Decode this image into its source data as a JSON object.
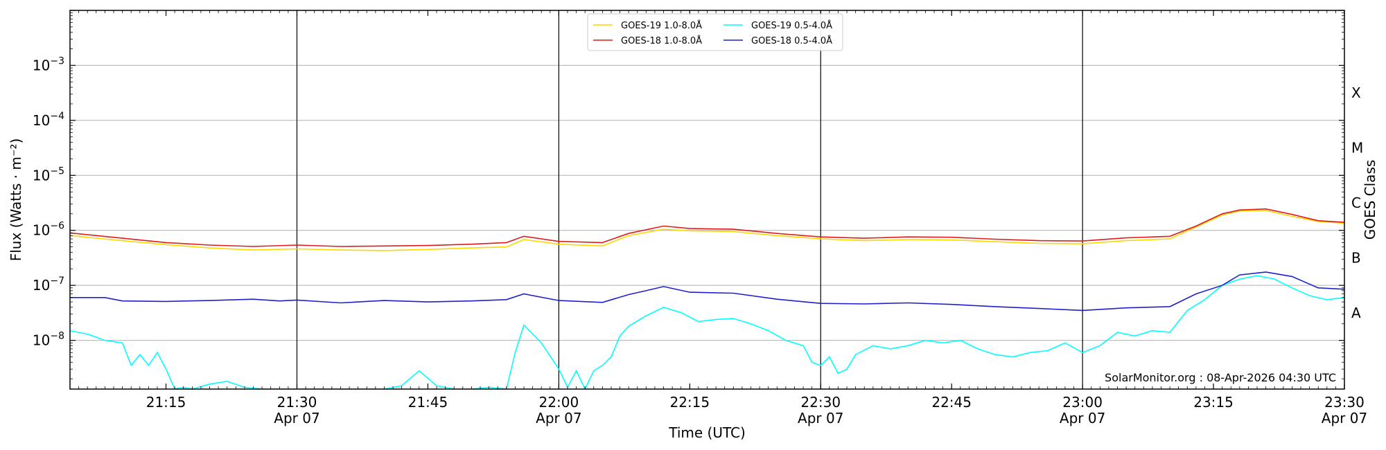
{
  "chart_data": {
    "type": "line",
    "xlabel": "Time (UTC)",
    "ylabel": "Flux (Watts · m⁻²)",
    "y2label": "GOES Class",
    "credit": "SolarMonitor.org : 08-Apr-2026 04:30 UTC",
    "yscale": "log",
    "ylim": [
      1.3e-09,
      0.01
    ],
    "xlim": [
      "2026-04-07T21:04",
      "2026-04-07T23:30"
    ],
    "grid": true,
    "legend_position": "top-center",
    "x_ticks": [
      {
        "time": "21:15",
        "date": ""
      },
      {
        "time": "21:30",
        "date": "Apr 07"
      },
      {
        "time": "21:45",
        "date": ""
      },
      {
        "time": "22:00",
        "date": "Apr 07"
      },
      {
        "time": "22:15",
        "date": ""
      },
      {
        "time": "22:30",
        "date": "Apr 07"
      },
      {
        "time": "22:45",
        "date": ""
      },
      {
        "time": "23:00",
        "date": "Apr 07"
      },
      {
        "time": "23:15",
        "date": ""
      },
      {
        "time": "23:30",
        "date": "Apr 07"
      }
    ],
    "y_ticks": [
      {
        "value": 1e-08,
        "label": "10",
        "exp": "−8"
      },
      {
        "value": 1e-07,
        "label": "10",
        "exp": "−7"
      },
      {
        "value": 1e-06,
        "label": "10",
        "exp": "−6"
      },
      {
        "value": 1e-05,
        "label": "10",
        "exp": "−5"
      },
      {
        "value": 0.0001,
        "label": "10",
        "exp": "−4"
      },
      {
        "value": 0.001,
        "label": "10",
        "exp": "−3"
      }
    ],
    "goes_classes": [
      {
        "label": "A",
        "value": 1e-08
      },
      {
        "label": "B",
        "value": 1e-07
      },
      {
        "label": "C",
        "value": 1e-06
      },
      {
        "label": "M",
        "value": 1e-05
      },
      {
        "label": "X",
        "value": 0.0001
      }
    ],
    "series": [
      {
        "name": "GOES-19 1.0-8.0Å",
        "color": "#ffd700",
        "x": [
          "21:04",
          "21:10",
          "21:15",
          "21:20",
          "21:25",
          "21:30",
          "21:35",
          "21:40",
          "21:45",
          "21:50",
          "21:54",
          "21:56",
          "22:00",
          "22:05",
          "22:08",
          "22:12",
          "22:15",
          "22:20",
          "22:25",
          "22:30",
          "22:35",
          "22:40",
          "22:45",
          "22:50",
          "22:55",
          "23:00",
          "23:05",
          "23:10",
          "23:13",
          "23:16",
          "23:18",
          "23:21",
          "23:24",
          "23:27",
          "23:30"
        ],
        "y": [
          8e-07,
          6.5e-07,
          5.5e-07,
          4.8e-07,
          4.4e-07,
          4.6e-07,
          4.4e-07,
          4.3e-07,
          4.5e-07,
          4.8e-07,
          5e-07,
          6.8e-07,
          5.6e-07,
          5.2e-07,
          8e-07,
          1.05e-06,
          9.8e-07,
          9.5e-07,
          8e-07,
          7e-07,
          6.5e-07,
          6.8e-07,
          6.7e-07,
          6.2e-07,
          5.8e-07,
          5.7e-07,
          6.5e-07,
          7e-07,
          1.15e-06,
          1.9e-06,
          2.25e-06,
          2.3e-06,
          1.8e-06,
          1.45e-06,
          1.35e-06
        ]
      },
      {
        "name": "GOES-18 1.0-8.0Å",
        "color": "#e01b1b",
        "x": [
          "21:04",
          "21:10",
          "21:15",
          "21:20",
          "21:25",
          "21:30",
          "21:35",
          "21:40",
          "21:45",
          "21:50",
          "21:54",
          "21:56",
          "22:00",
          "22:05",
          "22:08",
          "22:12",
          "22:15",
          "22:20",
          "22:25",
          "22:30",
          "22:35",
          "22:40",
          "22:45",
          "22:50",
          "22:55",
          "23:00",
          "23:05",
          "23:10",
          "23:13",
          "23:16",
          "23:18",
          "23:21",
          "23:24",
          "23:27",
          "23:30"
        ],
        "y": [
          9e-07,
          7.2e-07,
          6e-07,
          5.4e-07,
          5.1e-07,
          5.4e-07,
          5.1e-07,
          5.2e-07,
          5.3e-07,
          5.6e-07,
          6e-07,
          7.8e-07,
          6.3e-07,
          6e-07,
          8.8e-07,
          1.2e-06,
          1.08e-06,
          1.05e-06,
          8.8e-07,
          7.6e-07,
          7.2e-07,
          7.6e-07,
          7.5e-07,
          6.9e-07,
          6.5e-07,
          6.4e-07,
          7.3e-07,
          7.8e-07,
          1.2e-06,
          2e-06,
          2.35e-06,
          2.45e-06,
          1.95e-06,
          1.5e-06,
          1.4e-06
        ]
      },
      {
        "name": "GOES-19 0.5-4.0Å",
        "color": "#00ffff",
        "x": [
          "21:04",
          "21:06",
          "21:08",
          "21:10",
          "21:11",
          "21:12",
          "21:13",
          "21:14",
          "21:15",
          "21:16",
          "21:17",
          "21:18",
          "21:20",
          "21:22",
          "21:24",
          "21:26",
          "21:30",
          "21:35",
          "21:40",
          "21:42",
          "21:44",
          "21:46",
          "21:48",
          "21:50",
          "21:52",
          "21:54",
          "21:55",
          "21:56",
          "21:58",
          "22:00",
          "22:01",
          "22:02",
          "22:03",
          "22:04",
          "22:05",
          "22:06",
          "22:07",
          "22:08",
          "22:10",
          "22:12",
          "22:14",
          "22:16",
          "22:18",
          "22:20",
          "22:22",
          "22:24",
          "22:26",
          "22:28",
          "22:29",
          "22:30",
          "22:31",
          "22:32",
          "22:33",
          "22:34",
          "22:36",
          "22:38",
          "22:40",
          "22:42",
          "22:44",
          "22:46",
          "22:48",
          "22:50",
          "22:52",
          "22:54",
          "22:56",
          "22:58",
          "23:00",
          "23:02",
          "23:04",
          "23:06",
          "23:08",
          "23:10",
          "23:12",
          "23:14",
          "23:16",
          "23:18",
          "23:20",
          "23:22",
          "23:24",
          "23:26",
          "23:28",
          "23:30"
        ],
        "y": [
          1.5e-08,
          1.3e-08,
          1e-08,
          9e-09,
          3.5e-09,
          5.5e-09,
          3.5e-09,
          6e-09,
          3e-09,
          1.3e-09,
          1.4e-09,
          1.3e-09,
          1.6e-09,
          1.8e-09,
          1.4e-09,
          1.3e-09,
          1.3e-09,
          1.3e-09,
          1.3e-09,
          1.5e-09,
          2.8e-09,
          1.5e-09,
          1.3e-09,
          1.3e-09,
          1.4e-09,
          1.3e-09,
          6e-09,
          1.9e-08,
          9e-09,
          3e-09,
          1.4e-09,
          2.8e-09,
          1.3e-09,
          2.8e-09,
          3.5e-09,
          5e-09,
          1.2e-08,
          1.8e-08,
          2.8e-08,
          4e-08,
          3.2e-08,
          2.2e-08,
          2.4e-08,
          2.5e-08,
          2e-08,
          1.5e-08,
          1e-08,
          8e-09,
          4e-09,
          3.5e-09,
          5e-09,
          2.5e-09,
          3e-09,
          5.5e-09,
          8e-09,
          7e-09,
          8e-09,
          1e-08,
          9e-09,
          1e-08,
          7e-09,
          5.5e-09,
          5e-09,
          6e-09,
          6.5e-09,
          9e-09,
          6e-09,
          8e-09,
          1.4e-08,
          1.2e-08,
          1.5e-08,
          1.4e-08,
          3.5e-08,
          5.5e-08,
          1e-07,
          1.3e-07,
          1.5e-07,
          1.3e-07,
          9e-08,
          6.5e-08,
          5.5e-08,
          6e-08
        ]
      },
      {
        "name": "GOES-18 0.5-4.0Å",
        "color": "#1f1fcc",
        "x": [
          "21:04",
          "21:08",
          "21:10",
          "21:15",
          "21:20",
          "21:25",
          "21:28",
          "21:30",
          "21:35",
          "21:40",
          "21:45",
          "21:50",
          "21:54",
          "21:56",
          "22:00",
          "22:05",
          "22:08",
          "22:10",
          "22:12",
          "22:15",
          "22:20",
          "22:25",
          "22:30",
          "22:35",
          "22:40",
          "22:45",
          "22:50",
          "22:55",
          "23:00",
          "23:05",
          "23:10",
          "23:13",
          "23:16",
          "23:18",
          "23:21",
          "23:24",
          "23:27",
          "23:30"
        ],
        "y": [
          6e-08,
          6e-08,
          5.2e-08,
          5.1e-08,
          5.3e-08,
          5.6e-08,
          5.2e-08,
          5.4e-08,
          4.8e-08,
          5.3e-08,
          5e-08,
          5.2e-08,
          5.5e-08,
          7e-08,
          5.3e-08,
          4.9e-08,
          6.8e-08,
          8e-08,
          9.5e-08,
          7.5e-08,
          7.2e-08,
          5.6e-08,
          4.7e-08,
          4.6e-08,
          4.8e-08,
          4.5e-08,
          4.1e-08,
          3.8e-08,
          3.5e-08,
          3.9e-08,
          4.1e-08,
          7e-08,
          1e-07,
          1.55e-07,
          1.75e-07,
          1.45e-07,
          9e-08,
          8.5e-08
        ]
      }
    ]
  }
}
